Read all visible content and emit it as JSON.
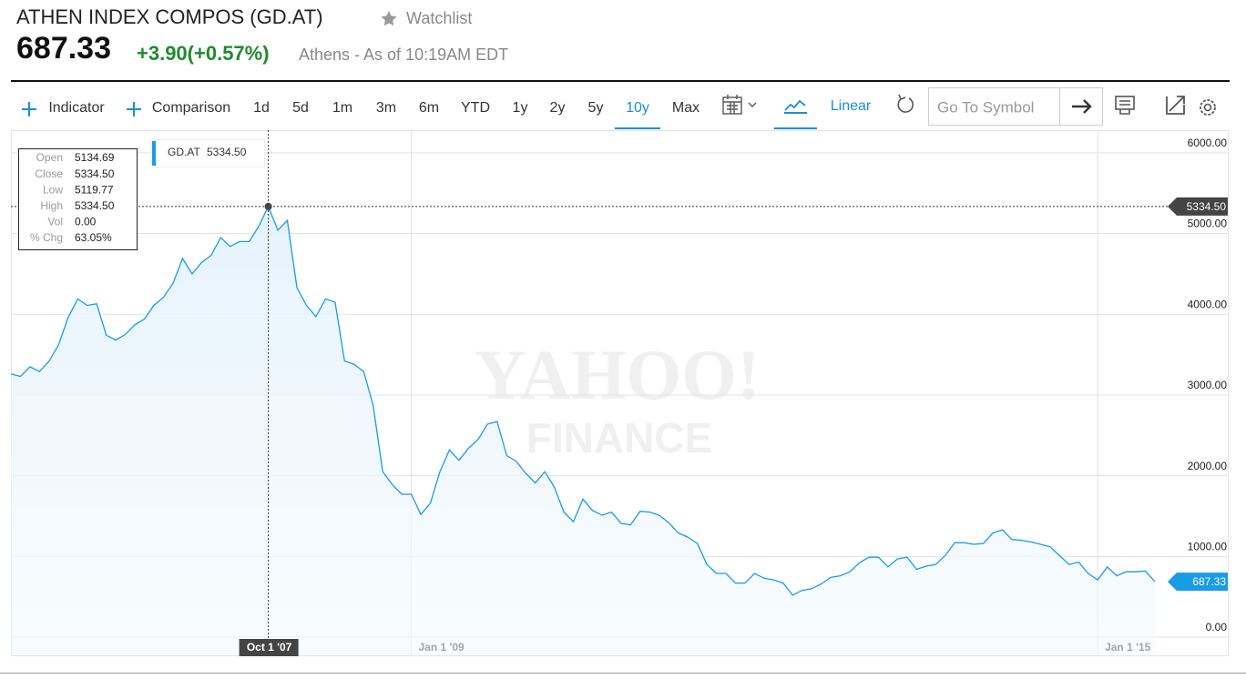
{
  "header": {
    "title": "ATHEN INDEX COMPOS (GD.AT)",
    "watchlist": "Watchlist",
    "price": "687.33",
    "change": "+3.90(+0.57%)",
    "market": "Athens - As of 10:19AM EDT"
  },
  "toolbar": {
    "items": [
      "Indicator",
      "Comparison",
      "1d",
      "5d",
      "1m",
      "3m",
      "6m",
      "YTD",
      "1y",
      "2y",
      "5y",
      "10y",
      "Max"
    ],
    "active": "10y",
    "scale": "Linear",
    "search_placeholder": "Go To Symbol"
  },
  "watermark": [
    "YAHOO!",
    "FINANCE"
  ],
  "tooltip": {
    "labels": [
      "Open",
      "Close",
      "Low",
      "High",
      "Vol",
      "% Chg"
    ],
    "values": [
      "5134.69",
      "5334.50",
      "5119.77",
      "5334.50",
      "0.00",
      "63.05%"
    ]
  },
  "chart_data": {
    "type": "area",
    "categories": [
      null,
      null,
      null,
      null,
      null,
      null,
      null,
      null,
      null,
      null,
      null,
      null,
      null,
      null,
      null,
      null,
      null,
      null,
      null,
      null,
      null,
      null,
      null,
      null,
      null,
      null,
      null,
      "Oct 1 '07",
      null,
      null,
      null,
      null,
      null,
      null,
      null,
      null,
      null,
      null,
      null,
      null,
      null,
      null,
      "Jan 1 '09",
      null,
      null,
      null,
      null,
      null,
      null,
      null,
      null,
      null,
      null,
      null,
      null,
      null,
      null,
      null,
      null,
      null,
      null,
      null,
      null,
      null,
      null,
      null,
      null,
      null,
      null,
      null,
      null,
      null,
      null,
      null,
      null,
      null,
      null,
      null,
      null,
      null,
      null,
      null,
      null,
      null,
      null,
      null,
      null,
      null,
      null,
      null,
      null,
      null,
      null,
      null,
      null,
      null,
      null,
      null,
      null,
      null,
      null,
      null,
      null,
      null,
      null,
      null,
      null,
      null,
      null,
      null,
      null,
      null,
      null,
      null,
      "Jan 1 '15",
      null,
      null,
      null,
      null,
      null,
      null
    ],
    "series": [
      {
        "name": "GD.AT",
        "color": "#1a9be6",
        "values": [
          3260,
          3230,
          3350,
          3290,
          3420,
          3620,
          3960,
          4190,
          4110,
          4130,
          3740,
          3680,
          3750,
          3870,
          3940,
          4110,
          4210,
          4380,
          4690,
          4500,
          4640,
          4730,
          4950,
          4840,
          4900,
          4900,
          5090,
          5334.5,
          5040,
          5160,
          4330,
          4110,
          3970,
          4190,
          4150,
          3420,
          3380,
          3290,
          2870,
          2050,
          1890,
          1770,
          1770,
          1520,
          1660,
          2050,
          2320,
          2190,
          2340,
          2450,
          2640,
          2670,
          2250,
          2180,
          2030,
          1910,
          2050,
          1860,
          1550,
          1430,
          1710,
          1570,
          1510,
          1550,
          1410,
          1390,
          1560,
          1550,
          1510,
          1420,
          1290,
          1240,
          1160,
          900,
          790,
          790,
          670,
          670,
          790,
          730,
          710,
          670,
          520,
          580,
          600,
          660,
          740,
          760,
          810,
          920,
          990,
          990,
          870,
          970,
          990,
          840,
          880,
          900,
          1010,
          1170,
          1170,
          1150,
          1160,
          1290,
          1330,
          1210,
          1200,
          1180,
          1150,
          1120,
          1010,
          900,
          930,
          790,
          710,
          870,
          760,
          810,
          810,
          820,
          687.33
        ]
      }
    ],
    "last_label": "687.33",
    "ylim": [
      -225,
      6280
    ],
    "yticks": [
      {
        "value": 0,
        "label": "0.00"
      },
      {
        "value": 1000,
        "label": "1000.00"
      },
      {
        "value": 2000,
        "label": "2000.00"
      },
      {
        "value": 3000,
        "label": "3000.00"
      },
      {
        "value": 4000,
        "label": "4000.00"
      },
      {
        "value": 5000,
        "label": "5000.00"
      },
      {
        "value": 6000,
        "label": "6000.00"
      }
    ],
    "grid": true
  }
}
